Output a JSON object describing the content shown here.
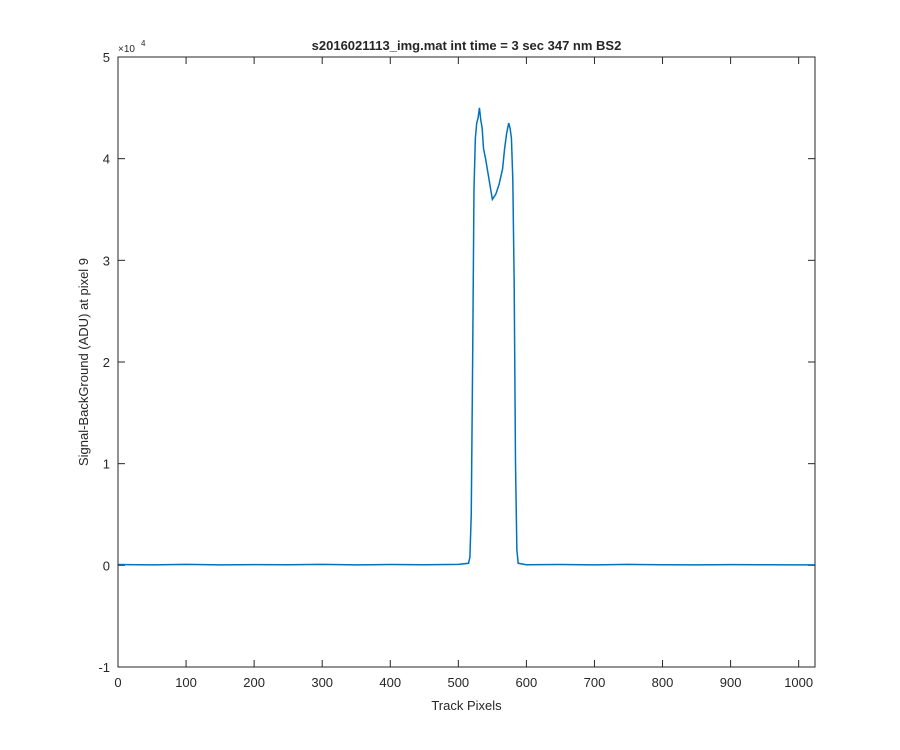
{
  "chart_data": {
    "type": "line",
    "title": "s2016021113_img.mat int time = 3 sec  347 nm BS2",
    "xlabel": "Track Pixels",
    "ylabel": "Signal-BackGround (ADU) at pixel 9",
    "xlim": [
      0,
      1024
    ],
    "ylim": [
      -10000,
      50000
    ],
    "x_ticks": [
      0,
      100,
      200,
      300,
      400,
      500,
      600,
      700,
      800,
      900,
      1000
    ],
    "x_tick_labels": [
      "0",
      "100",
      "200",
      "300",
      "400",
      "500",
      "600",
      "700",
      "800",
      "900",
      "1000"
    ],
    "y_ticks": [
      -10000,
      0,
      10000,
      20000,
      30000,
      40000,
      50000
    ],
    "y_tick_labels": [
      "-1",
      "0",
      "1",
      "2",
      "3",
      "4",
      "5"
    ],
    "y_multiplier": "×10",
    "y_multiplier_exponent": "4",
    "grid": false,
    "line_color": "#0072BD",
    "series": [
      {
        "x": [
          0,
          50,
          100,
          150,
          200,
          250,
          300,
          350,
          400,
          450,
          500,
          515,
          517,
          519,
          521,
          523,
          525,
          527,
          529,
          531,
          533,
          535,
          537,
          540,
          545,
          550,
          555,
          560,
          565,
          568,
          571,
          574,
          576,
          578,
          580,
          582,
          584,
          586,
          588,
          600,
          650,
          700,
          750,
          800,
          850,
          900,
          950,
          1000,
          1024
        ],
        "y": [
          80,
          40,
          90,
          50,
          70,
          60,
          100,
          50,
          80,
          60,
          90,
          200,
          800,
          5000,
          20000,
          37000,
          42000,
          43500,
          44000,
          45000,
          43800,
          43000,
          41000,
          40000,
          38000,
          36000,
          36500,
          37500,
          39000,
          41000,
          42500,
          43500,
          43000,
          42000,
          38000,
          28000,
          10000,
          1500,
          200,
          60,
          80,
          40,
          90,
          60,
          50,
          70,
          60,
          50,
          40
        ]
      }
    ]
  }
}
